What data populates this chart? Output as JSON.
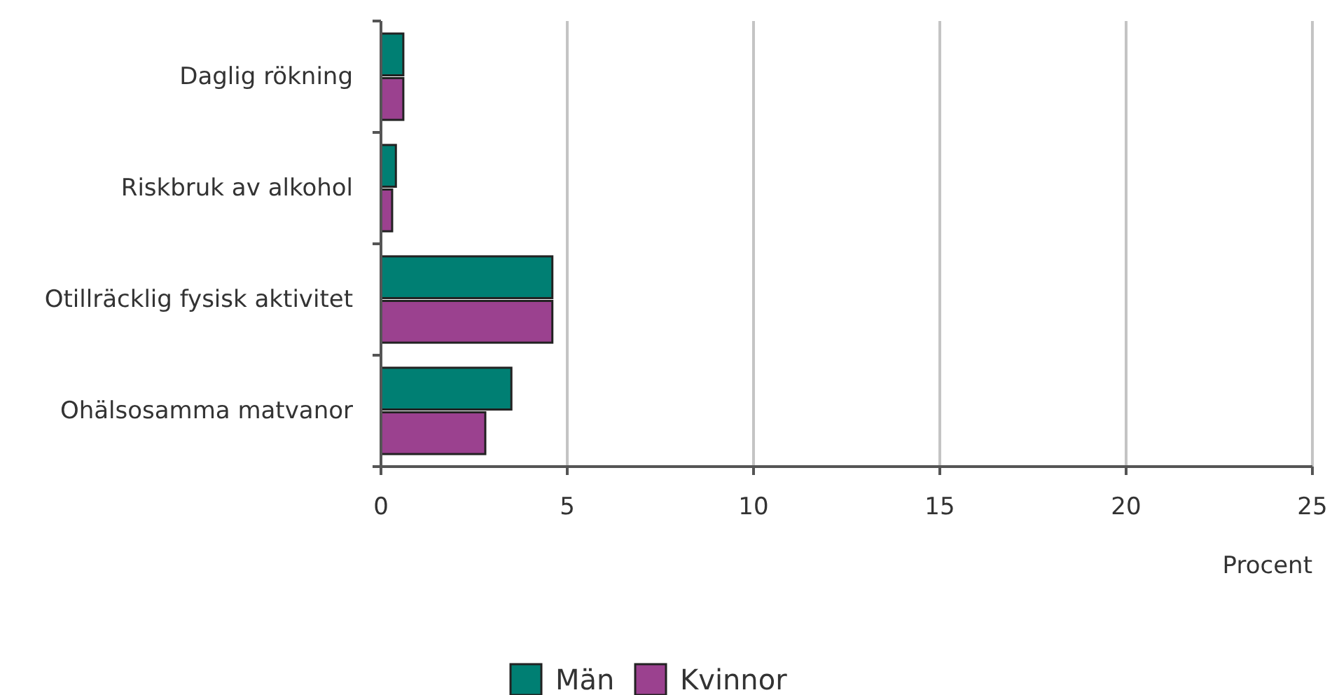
{
  "chart_data": {
    "type": "bar",
    "orientation": "horizontal",
    "xlabel": "Procent",
    "categories": [
      "Daglig rökning",
      "Riskbruk av alkohol",
      "Otillräcklig fysisk aktivitet",
      "Ohälsosamma matvanor"
    ],
    "series": [
      {
        "name": "Män",
        "color": "#007f73",
        "values": [
          0.6,
          0.4,
          4.6,
          3.5
        ]
      },
      {
        "name": "Kvinnor",
        "color": "#9b418f",
        "values": [
          0.6,
          0.3,
          4.6,
          2.8
        ]
      }
    ],
    "xlim": [
      0,
      25
    ],
    "xticks": [
      0,
      5,
      10,
      15,
      20,
      25
    ],
    "grid": "x",
    "legend": "bottom"
  }
}
